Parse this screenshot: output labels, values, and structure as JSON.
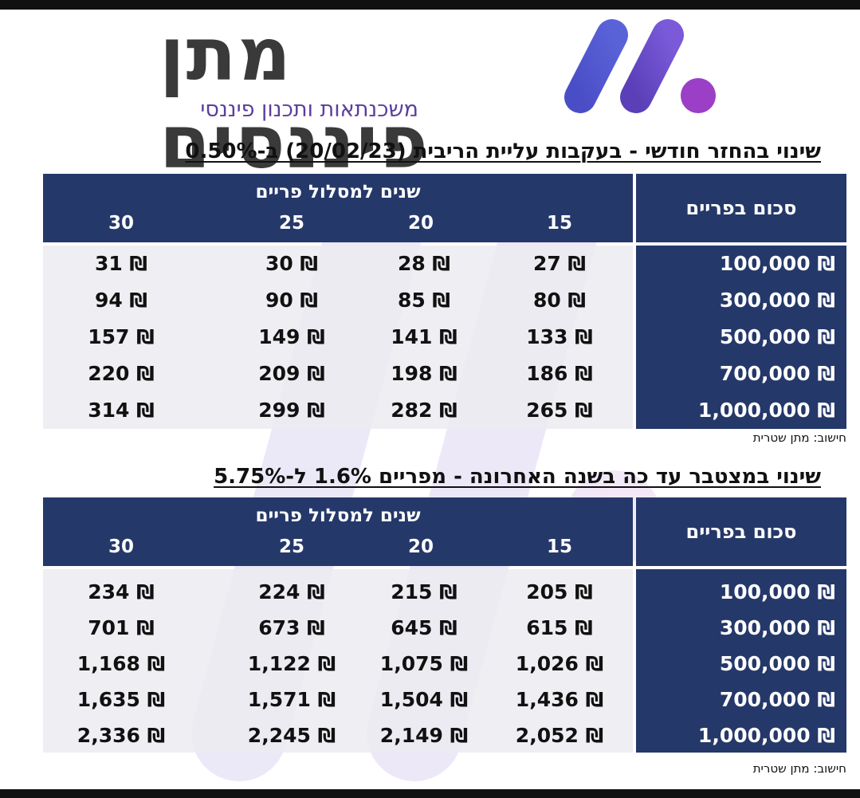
{
  "brand": {
    "title": "מתן פיננסים",
    "subtitle": "משכנתאות ותכנון פיננסי",
    "colors": {
      "purple_dark": "#4a3fae",
      "purple_light": "#8a3fc0",
      "navy": "#25386a"
    }
  },
  "tables": [
    {
      "heading": "שינוי בהחזר חודשי - בעקבות עליית הריבית (20/02/23) ב-0.50%",
      "amount_header": "סכום בפריים",
      "group_header": "שנים למסלול פריים",
      "columns": [
        "15",
        "20",
        "25",
        "30"
      ],
      "rows": [
        {
          "amount": "100,000 ₪",
          "values": [
            "27 ₪",
            "28 ₪",
            "30 ₪",
            "31 ₪"
          ]
        },
        {
          "amount": "300,000 ₪",
          "values": [
            "80 ₪",
            "85 ₪",
            "90 ₪",
            "94 ₪"
          ]
        },
        {
          "amount": "500,000 ₪",
          "values": [
            "133 ₪",
            "141 ₪",
            "149 ₪",
            "157 ₪"
          ]
        },
        {
          "amount": "700,000 ₪",
          "values": [
            "186 ₪",
            "198 ₪",
            "209 ₪",
            "220 ₪"
          ]
        },
        {
          "amount": "1,000,000 ₪",
          "values": [
            "265 ₪",
            "282 ₪",
            "299 ₪",
            "314 ₪"
          ]
        }
      ],
      "note": "חישוב: מתן שטרית"
    },
    {
      "heading": "שינוי במצטבר עד כה בשנה האחרונה - מפריים 1.6% ל-5.75%",
      "amount_header": "סכום בפריים",
      "group_header": "שנים למסלול פריים",
      "columns": [
        "15",
        "20",
        "25",
        "30"
      ],
      "rows": [
        {
          "amount": "100,000 ₪",
          "values": [
            "205 ₪",
            "215 ₪",
            "224 ₪",
            "234 ₪"
          ]
        },
        {
          "amount": "300,000 ₪",
          "values": [
            "615 ₪",
            "645 ₪",
            "673 ₪",
            "701 ₪"
          ]
        },
        {
          "amount": "500,000 ₪",
          "values": [
            "1,026 ₪",
            "1,075 ₪",
            "1,122 ₪",
            "1,168 ₪"
          ]
        },
        {
          "amount": "700,000 ₪",
          "values": [
            "1,436 ₪",
            "1,504 ₪",
            "1,571 ₪",
            "1,635 ₪"
          ]
        },
        {
          "amount": "1,000,000 ₪",
          "values": [
            "2,052 ₪",
            "2,149 ₪",
            "2,245 ₪",
            "2,336 ₪"
          ]
        }
      ],
      "note": "חישוב: מתן שטרית"
    }
  ]
}
